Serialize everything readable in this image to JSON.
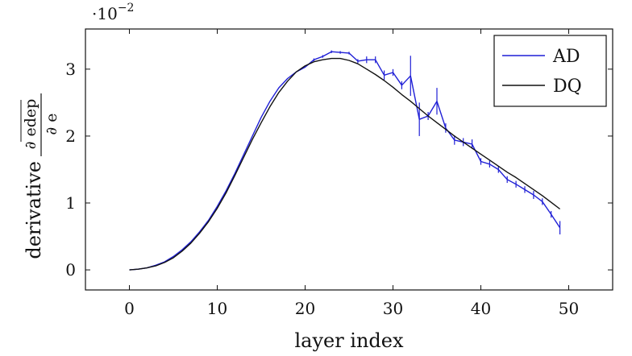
{
  "chart_data": {
    "type": "line",
    "title": "",
    "xlabel": "layer index",
    "ylabel": {
      "prefix": "derivative",
      "numerator": "∂ edep",
      "denominator": "∂ e"
    },
    "y_scale_note": {
      "base": "·10",
      "exponent": "−2"
    },
    "xlim": [
      -5,
      55
    ],
    "ylim": [
      -0.3,
      3.6
    ],
    "xticks": [
      0,
      10,
      20,
      30,
      40,
      50
    ],
    "yticks": [
      0,
      1,
      2,
      3
    ],
    "grid": false,
    "legend_position": "top-right",
    "series": [
      {
        "name": "AD",
        "color": "#1f1fd6",
        "x": [
          0,
          1,
          2,
          3,
          4,
          5,
          6,
          7,
          8,
          9,
          10,
          11,
          12,
          13,
          14,
          15,
          16,
          17,
          18,
          19,
          20,
          21,
          22,
          23,
          24,
          25,
          26,
          27,
          28,
          29,
          30,
          31,
          32,
          33,
          34,
          35,
          36,
          37,
          38,
          39,
          40,
          41,
          42,
          43,
          44,
          45,
          46,
          47,
          48,
          49
        ],
        "y": [
          0.0,
          0.01,
          0.03,
          0.07,
          0.12,
          0.2,
          0.3,
          0.42,
          0.57,
          0.74,
          0.95,
          1.18,
          1.44,
          1.72,
          2.0,
          2.28,
          2.52,
          2.72,
          2.86,
          2.96,
          3.03,
          3.14,
          3.19,
          3.26,
          3.25,
          3.24,
          3.12,
          3.14,
          3.14,
          2.91,
          2.95,
          2.76,
          2.9,
          2.25,
          2.3,
          2.52,
          2.12,
          1.94,
          1.91,
          1.88,
          1.62,
          1.58,
          1.5,
          1.35,
          1.28,
          1.2,
          1.12,
          1.02,
          0.83,
          0.63
        ],
        "err": [
          0,
          0,
          0,
          0,
          0,
          0,
          0,
          0,
          0,
          0,
          0,
          0,
          0,
          0,
          0,
          0,
          0,
          0,
          0,
          0,
          0,
          0.02,
          0.02,
          0.02,
          0.02,
          0.02,
          0.03,
          0.05,
          0.05,
          0.07,
          0.05,
          0.06,
          0.3,
          0.25,
          0.06,
          0.2,
          0.07,
          0.07,
          0.06,
          0.07,
          0.05,
          0.05,
          0.05,
          0.05,
          0.05,
          0.05,
          0.06,
          0.05,
          0.05,
          0.1
        ]
      },
      {
        "name": "DQ",
        "color": "#111111",
        "x": [
          0,
          1,
          2,
          3,
          4,
          5,
          6,
          7,
          8,
          9,
          10,
          11,
          12,
          13,
          14,
          15,
          16,
          17,
          18,
          19,
          20,
          21,
          22,
          23,
          24,
          25,
          26,
          27,
          28,
          29,
          30,
          31,
          32,
          33,
          34,
          35,
          36,
          37,
          38,
          39,
          40,
          41,
          42,
          43,
          44,
          45,
          46,
          47,
          48,
          49
        ],
        "y": [
          0.0,
          0.01,
          0.03,
          0.06,
          0.11,
          0.18,
          0.28,
          0.4,
          0.55,
          0.72,
          0.92,
          1.15,
          1.41,
          1.68,
          1.95,
          2.2,
          2.44,
          2.65,
          2.82,
          2.96,
          3.05,
          3.11,
          3.14,
          3.16,
          3.16,
          3.13,
          3.08,
          3.0,
          2.92,
          2.83,
          2.73,
          2.62,
          2.52,
          2.41,
          2.3,
          2.2,
          2.1,
          2.0,
          1.91,
          1.82,
          1.73,
          1.64,
          1.55,
          1.46,
          1.38,
          1.29,
          1.2,
          1.11,
          1.01,
          0.91
        ]
      }
    ]
  }
}
